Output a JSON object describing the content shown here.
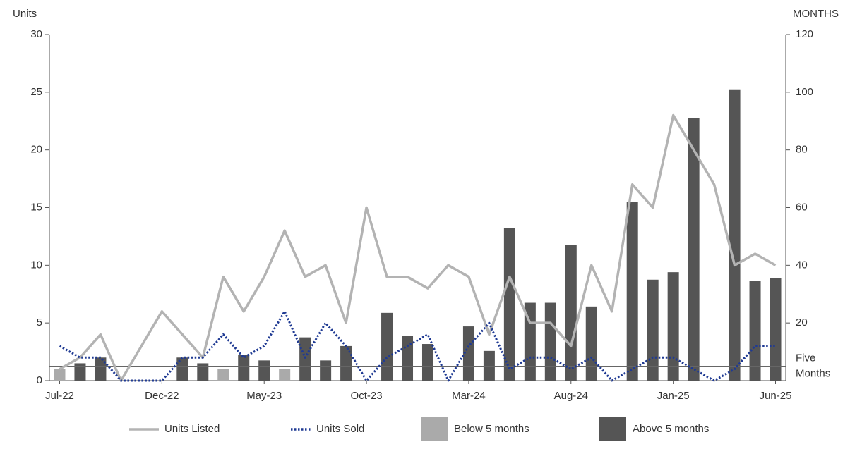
{
  "chart_data": {
    "type": "bar-line",
    "y_label": "Units",
    "y2_label": "MONTHS",
    "categories": [
      "Jul-22",
      null,
      null,
      null,
      null,
      "Dec-22",
      null,
      null,
      null,
      null,
      "May-23",
      null,
      null,
      null,
      null,
      "Oct-23",
      null,
      null,
      null,
      null,
      "Mar-24",
      null,
      null,
      null,
      null,
      "Aug-24",
      null,
      null,
      null,
      null,
      "Jan-25",
      null,
      null,
      null,
      null,
      "Jun-25"
    ],
    "series": [
      {
        "name": "Units Listed",
        "kind": "line",
        "axis": "y",
        "color": "#b3b3b3",
        "style": "solid",
        "values": [
          1,
          2,
          4,
          0,
          3,
          6,
          4,
          2,
          9,
          6,
          9,
          13,
          9,
          10,
          5,
          15,
          9,
          9,
          8,
          10,
          9,
          4,
          9,
          5,
          5,
          3,
          10,
          6,
          17,
          15,
          23,
          20,
          17,
          10,
          11,
          10
        ]
      },
      {
        "name": "Units Sold",
        "kind": "line",
        "axis": "y",
        "color": "#1f3a93",
        "style": "dotted",
        "values": [
          3,
          2,
          2,
          0,
          0,
          0,
          2,
          2,
          4,
          2,
          3,
          6,
          2,
          5,
          3,
          0,
          2,
          3,
          4,
          0,
          3,
          5,
          1,
          2,
          2,
          1,
          2,
          0,
          1,
          2,
          2,
          1,
          0,
          1,
          3,
          3
        ]
      },
      {
        "name": "Below 5 months",
        "kind": "bar",
        "axis": "y2",
        "color": "#aaaaaa",
        "values": [
          4,
          null,
          null,
          null,
          null,
          null,
          null,
          null,
          4,
          null,
          null,
          4,
          null,
          null,
          null,
          null,
          null,
          null,
          null,
          null,
          null,
          null,
          null,
          null,
          null,
          null,
          null,
          null,
          null,
          null,
          null,
          null,
          null,
          null,
          null,
          null
        ]
      },
      {
        "name": "Above 5 months",
        "kind": "bar",
        "axis": "y2",
        "color": "#555555",
        "values": [
          null,
          6,
          8,
          null,
          null,
          null,
          8,
          6,
          null,
          9,
          7,
          null,
          15,
          7,
          12,
          null,
          23.5,
          15.6,
          12.7,
          null,
          18.8,
          10.3,
          53,
          27,
          27,
          47,
          25.7,
          null,
          62,
          35,
          37.6,
          91,
          null,
          101,
          34.7,
          35.5
        ]
      }
    ],
    "ylim": [
      0,
      30
    ],
    "yticks": [
      0,
      5,
      10,
      15,
      20,
      25,
      30
    ],
    "y2lim": [
      0,
      120
    ],
    "y2ticks": [
      20,
      40,
      60,
      80,
      100,
      120
    ],
    "reference_line": {
      "axis": "y2",
      "value": 5,
      "label": [
        "Five",
        "Months"
      ],
      "color": "#666666"
    },
    "legend": "bottom"
  }
}
